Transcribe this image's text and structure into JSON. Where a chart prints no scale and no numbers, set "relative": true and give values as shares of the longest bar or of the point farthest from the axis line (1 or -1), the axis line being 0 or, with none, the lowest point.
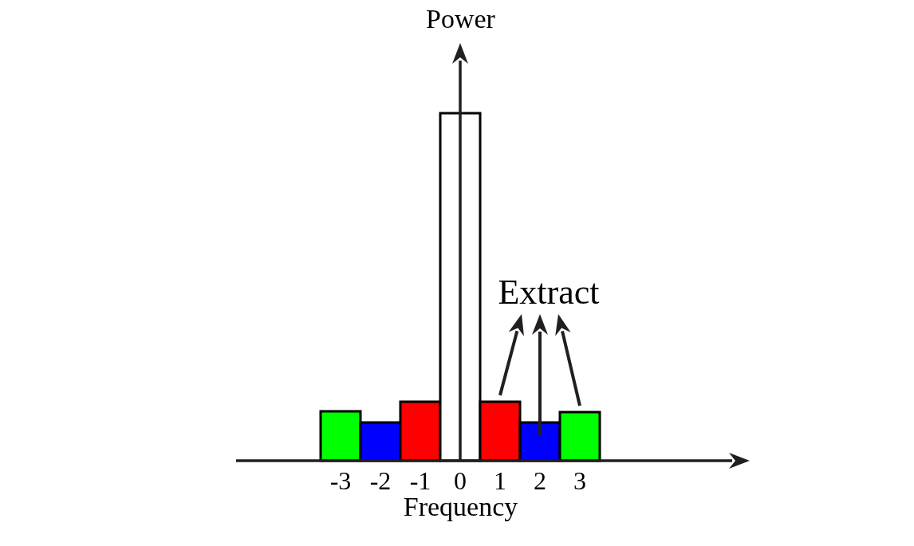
{
  "chart_data": {
    "type": "bar",
    "relative": true,
    "xlabel": "Frequency",
    "ylabel": "Power",
    "categories": [
      "-3",
      "-2",
      "-1",
      "0",
      "1",
      "2",
      "3"
    ],
    "values": [
      0.142,
      0.11,
      0.17,
      1,
      0.17,
      0.11,
      0.14
    ],
    "colors": [
      "#00ff00",
      "#0000ff",
      "#ff0000",
      "#ffffff",
      "#ff0000",
      "#0000ff",
      "#00ff00"
    ],
    "annotations": [
      "Extract"
    ]
  }
}
